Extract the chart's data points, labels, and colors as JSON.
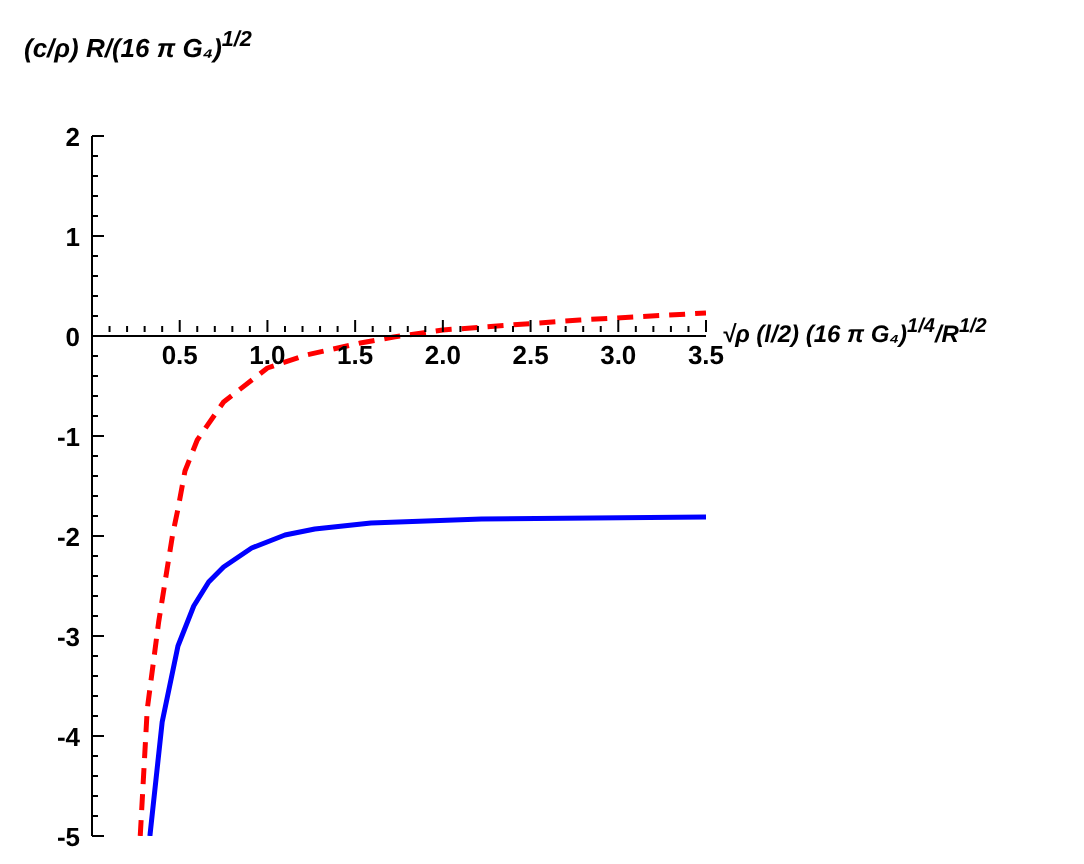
{
  "chart_data": {
    "type": "line",
    "ylabel": "(c/ρ) R/(16 π G₄)$^{1/2}$",
    "xlabel": "√ρ (l/2) (16 π G₄)$^{1/4}$/R$^{1/2}$",
    "xlim": [
      0,
      3.5
    ],
    "ylim": [
      -5,
      2
    ],
    "xticks": [
      {
        "value": 0.1,
        "label": null
      },
      {
        "value": 0.2,
        "label": null
      },
      {
        "value": 0.3,
        "label": null
      },
      {
        "value": 0.4,
        "label": null
      },
      {
        "value": 0.5,
        "label": "0.5"
      },
      {
        "value": 0.6,
        "label": null
      },
      {
        "value": 0.7,
        "label": null
      },
      {
        "value": 0.8,
        "label": null
      },
      {
        "value": 0.9,
        "label": null
      },
      {
        "value": 1,
        "label": "1.0"
      },
      {
        "value": 1.1,
        "label": null
      },
      {
        "value": 1.2,
        "label": null
      },
      {
        "value": 1.3,
        "label": null
      },
      {
        "value": 1.4,
        "label": null
      },
      {
        "value": 1.5,
        "label": "1.5"
      },
      {
        "value": 1.6,
        "label": null
      },
      {
        "value": 1.7,
        "label": null
      },
      {
        "value": 1.8,
        "label": null
      },
      {
        "value": 1.9,
        "label": null
      },
      {
        "value": 2,
        "label": "2.0"
      },
      {
        "value": 2.1,
        "label": null
      },
      {
        "value": 2.2,
        "label": null
      },
      {
        "value": 2.3,
        "label": null
      },
      {
        "value": 2.4,
        "label": null
      },
      {
        "value": 2.5,
        "label": "2.5"
      },
      {
        "value": 2.6,
        "label": null
      },
      {
        "value": 2.7,
        "label": null
      },
      {
        "value": 2.8,
        "label": null
      },
      {
        "value": 2.9,
        "label": null
      },
      {
        "value": 3,
        "label": "3.0"
      },
      {
        "value": 3.1,
        "label": null
      },
      {
        "value": 3.2,
        "label": null
      },
      {
        "value": 3.3,
        "label": null
      },
      {
        "value": 3.4,
        "label": null
      },
      {
        "value": 3.5,
        "label": "3.5"
      }
    ],
    "yticks": [
      -5,
      {
        "value": -4.8,
        "label": null
      },
      {
        "value": -4.6,
        "label": null
      },
      {
        "value": -4.4,
        "label": null
      },
      {
        "value": -4.2,
        "label": null
      },
      -4,
      {
        "value": -3.8,
        "label": null
      },
      {
        "value": -3.6,
        "label": null
      },
      {
        "value": -3.4,
        "label": null
      },
      {
        "value": -3.2,
        "label": null
      },
      -3,
      {
        "value": -2.8,
        "label": null
      },
      {
        "value": -2.6,
        "label": null
      },
      {
        "value": -2.4,
        "label": null
      },
      {
        "value": -2.2,
        "label": null
      },
      -2,
      {
        "value": -1.8,
        "label": null
      },
      {
        "value": -1.6,
        "label": null
      },
      {
        "value": -1.4,
        "label": null
      },
      {
        "value": -1.2,
        "label": null
      },
      -1,
      {
        "value": -0.8,
        "label": null
      },
      {
        "value": -0.6,
        "label": null
      },
      {
        "value": -0.4,
        "label": null
      },
      {
        "value": -0.2,
        "label": null
      },
      0,
      {
        "value": 0.2,
        "label": null
      },
      {
        "value": 0.4,
        "label": null
      },
      {
        "value": 0.6,
        "label": null
      },
      {
        "value": 0.8,
        "label": null
      },
      1,
      {
        "value": 1.2,
        "label": null
      },
      {
        "value": 1.4,
        "label": null
      },
      {
        "value": 1.6,
        "label": null
      },
      {
        "value": 1.8,
        "label": null
      },
      2
    ],
    "marker": "none",
    "grid": false,
    "legend": false,
    "series": [
      {
        "color": "#ff0000",
        "line_style": "dashed",
        "x": [
          0.275,
          0.315,
          0.38,
          0.46,
          0.49,
          0.53,
          0.6,
          0.75,
          1.0,
          1.22,
          1.53,
          1.72,
          2.0,
          2.47,
          2.78,
          3.5
        ],
        "values": [
          -5,
          -3.73,
          -2.86,
          -1.98,
          -1.73,
          -1.35,
          -1.04,
          -0.66,
          -0.32,
          -0.19,
          -0.07,
          -0.01,
          0.06,
          0.12,
          0.16,
          0.23
        ]
      },
      {
        "color": "#0000ff",
        "line_style": "solid",
        "x": [
          0.33,
          0.4,
          0.49,
          0.58,
          0.665,
          0.75,
          0.91,
          1.1,
          1.27,
          1.59,
          2.22,
          3.5
        ],
        "values": [
          -5,
          -3.86,
          -3.1,
          -2.7,
          -2.46,
          -2.31,
          -2.12,
          -1.99,
          -1.93,
          -1.87,
          -1.83,
          -1.81
        ]
      }
    ]
  }
}
